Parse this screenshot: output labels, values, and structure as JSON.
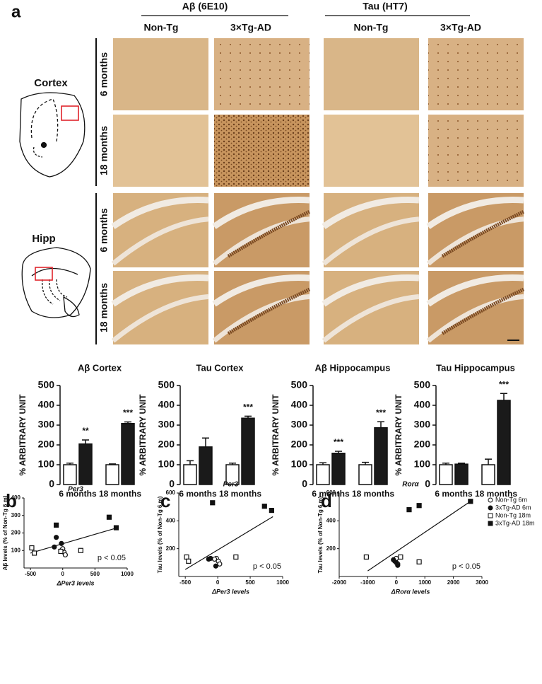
{
  "panel_a": {
    "label": "a",
    "headers": [
      "Aβ (6E10)",
      "Tau (HT7)"
    ],
    "columns": [
      "Non-Tg",
      "3×Tg-AD",
      "Non-Tg",
      "3×Tg-AD"
    ],
    "regions": [
      "Cortex",
      "Hipp"
    ],
    "rows": [
      "6 months",
      "18 months",
      "6 months",
      "18 months"
    ]
  },
  "chart_data": [
    {
      "type": "bar",
      "title": "Aβ Cortex",
      "ylabel": "% ARBITRARY UNIT",
      "categories": [
        "6 months",
        "18 months"
      ],
      "ylim": [
        0,
        500
      ],
      "yticks": [
        0,
        100,
        200,
        300,
        400,
        500
      ],
      "series": [
        {
          "color": "#ffffff",
          "values": [
            100,
            100
          ],
          "errors": [
            8,
            4
          ]
        },
        {
          "color": "#1a1a1a",
          "values": [
            205,
            308
          ],
          "errors": [
            20,
            8
          ]
        }
      ],
      "significance": [
        "**",
        "***"
      ]
    },
    {
      "type": "bar",
      "title": "Tau Cortex",
      "ylabel": "% ARBITRARY UNIT",
      "categories": [
        "6 months",
        "18 months"
      ],
      "ylim": [
        0,
        500
      ],
      "yticks": [
        0,
        100,
        200,
        300,
        400,
        500
      ],
      "series": [
        {
          "color": "#ffffff",
          "values": [
            100,
            100
          ],
          "errors": [
            20,
            8
          ]
        },
        {
          "color": "#1a1a1a",
          "values": [
            190,
            335
          ],
          "errors": [
            45,
            10
          ]
        }
      ],
      "significance": [
        null,
        "***"
      ]
    },
    {
      "type": "bar",
      "title": "Aβ Hippocampus",
      "ylabel": "% ARBITRARY UNIT",
      "categories": [
        "6 months",
        "18 months"
      ],
      "ylim": [
        0,
        500
      ],
      "yticks": [
        0,
        100,
        200,
        300,
        400,
        500
      ],
      "series": [
        {
          "color": "#ffffff",
          "values": [
            100,
            100
          ],
          "errors": [
            10,
            12
          ]
        },
        {
          "color": "#1a1a1a",
          "values": [
            158,
            287
          ],
          "errors": [
            10,
            30
          ]
        }
      ],
      "significance": [
        "***",
        "***"
      ]
    },
    {
      "type": "bar",
      "title": "Tau Hippocampus",
      "ylabel": "% ARBITRARY UNIT",
      "categories": [
        "6 months",
        "18 months"
      ],
      "ylim": [
        0,
        500
      ],
      "yticks": [
        0,
        100,
        200,
        300,
        400,
        500
      ],
      "series": [
        {
          "color": "#ffffff",
          "values": [
            100,
            100
          ],
          "errors": [
            8,
            28
          ]
        },
        {
          "color": "#1a1a1a",
          "values": [
            103,
            425
          ],
          "errors": [
            5,
            35
          ]
        }
      ],
      "significance": [
        null,
        "***"
      ]
    },
    {
      "type": "scatter",
      "panel_label": "b",
      "title": "Per3",
      "ylabel": "Aβ levels (% of Non-Tg 6 m)",
      "xlabel": "ΔPer3 levels",
      "annotation": "p < 0.05",
      "xlim": [
        -600,
        1000
      ],
      "xticks": [
        -500,
        0,
        500,
        1000
      ],
      "ylim": [
        0,
        400
      ],
      "yticks": [
        100,
        200,
        300,
        400
      ],
      "series": [
        {
          "name": "Non-Tg 6m",
          "marker": "circle",
          "filled": false,
          "x": [
            -20,
            20,
            40,
            0
          ],
          "y": [
            100,
            90,
            75,
            110
          ]
        },
        {
          "name": "3xTg-AD 6m",
          "marker": "circle",
          "filled": true,
          "x": [
            -100,
            -20,
            -130
          ],
          "y": [
            175,
            140,
            120
          ]
        },
        {
          "name": "Non-Tg 18m",
          "marker": "square",
          "filled": false,
          "x": [
            -480,
            -440,
            280,
            -30
          ],
          "y": [
            115,
            85,
            100,
            95
          ]
        },
        {
          "name": "3xTg-AD 18m",
          "marker": "square",
          "filled": true,
          "x": [
            -100,
            720,
            830
          ],
          "y": [
            245,
            290,
            230
          ]
        }
      ],
      "fit": {
        "x": [
          -500,
          850
        ],
        "y": [
          85,
          230
        ]
      }
    },
    {
      "type": "scatter",
      "panel_label": "c",
      "title": "Per3",
      "ylabel": "Tau levels (% of Non-Tg 6 m)",
      "xlabel": "ΔPer3 levels",
      "annotation": "p < 0.05",
      "xlim": [
        -600,
        1000
      ],
      "xticks": [
        -500,
        0,
        500,
        1000
      ],
      "ylim": [
        0,
        600
      ],
      "yticks": [
        200,
        400,
        600
      ],
      "series": [
        {
          "name": "Non-Tg 6m",
          "marker": "circle",
          "filled": false,
          "x": [
            -20,
            10,
            30,
            -50
          ],
          "y": [
            130,
            110,
            90,
            125
          ]
        },
        {
          "name": "3xTg-AD 6m",
          "marker": "circle",
          "filled": true,
          "x": [
            -140,
            -110,
            -30
          ],
          "y": [
            125,
            130,
            75
          ]
        },
        {
          "name": "Non-Tg 18m",
          "marker": "square",
          "filled": false,
          "x": [
            -480,
            -450,
            280
          ],
          "y": [
            140,
            110,
            140
          ]
        },
        {
          "name": "3xTg-AD 18m",
          "marker": "square",
          "filled": true,
          "x": [
            -80,
            720,
            830
          ],
          "y": [
            530,
            505,
            475
          ]
        }
      ],
      "fit": {
        "x": [
          -500,
          850
        ],
        "y": [
          50,
          430
        ]
      }
    },
    {
      "type": "scatter",
      "panel_label": "d",
      "title": "Rorα",
      "ylabel": "Tau levels (% of Non-Tg 6 m)",
      "xlabel": "ΔRorα levels",
      "annotation": "p < 0.05",
      "xlim": [
        -2000,
        3000
      ],
      "xticks": [
        -2000,
        -1000,
        0,
        1000,
        2000,
        3000
      ],
      "ylim": [
        0,
        600
      ],
      "yticks": [
        200,
        400,
        600
      ],
      "series": [
        {
          "name": "Non-Tg 6m",
          "marker": "circle",
          "filled": false,
          "x": [
            -50,
            50,
            0
          ],
          "y": [
            110,
            90,
            130
          ]
        },
        {
          "name": "3xTg-AD 6m",
          "marker": "circle",
          "filled": true,
          "x": [
            -100,
            0,
            50
          ],
          "y": [
            120,
            100,
            80
          ]
        },
        {
          "name": "Non-Tg 18m",
          "marker": "square",
          "filled": false,
          "x": [
            -1050,
            150,
            800
          ],
          "y": [
            140,
            140,
            105
          ]
        },
        {
          "name": "3xTg-AD 18m",
          "marker": "square",
          "filled": true,
          "x": [
            450,
            800,
            2600
          ],
          "y": [
            480,
            510,
            540
          ]
        }
      ],
      "fit": {
        "x": [
          -1000,
          2600
        ],
        "y": [
          40,
          540
        ]
      }
    }
  ]
}
